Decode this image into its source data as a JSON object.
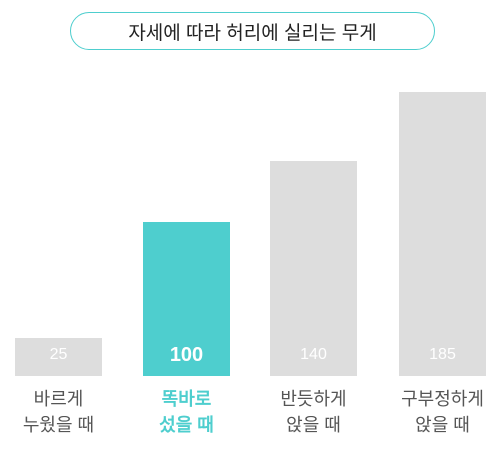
{
  "chart_data": {
    "type": "bar",
    "title": "자세에 따라 허리에 실리는 무게",
    "categories": [
      "바르게\n누웠을 때",
      "똑바로\n섰을 때",
      "반듯하게\n앉을 때",
      "구부정하게\n앉을 때"
    ],
    "values": [
      25,
      100,
      140,
      185
    ],
    "colors": [
      "#dddddd",
      "#4ecece",
      "#dddddd",
      "#dddddd"
    ]
  }
}
